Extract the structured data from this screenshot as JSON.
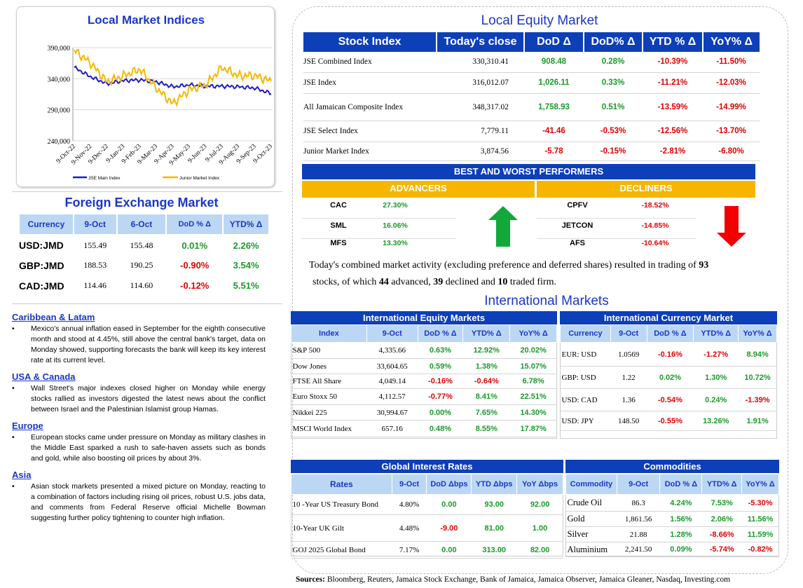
{
  "chart": {
    "title": "Local Market Indices",
    "yticks": [
      "390,000",
      "340,000",
      "290,000",
      "240,000"
    ],
    "xticks": [
      "9-Oct-22",
      "9-Nov-22",
      "9-Dec-22",
      "9-Jan-23",
      "9-Feb-23",
      "9-Mar-23",
      "9-Apr-23",
      "9-May-23",
      "9-Jun-23",
      "9-Jul-23",
      "9-Aug-23",
      "9-Sep-23",
      "9-Oct-23"
    ],
    "legend": [
      "JSE Main Index",
      "Junior Market Index"
    ],
    "colors": [
      "#1d1dc8",
      "#f5b800"
    ]
  },
  "chart_data": {
    "type": "line",
    "title": "Local Market Indices",
    "categories": [
      "9-Oct-22",
      "9-Nov-22",
      "9-Dec-22",
      "9-Jan-23",
      "9-Feb-23",
      "9-Mar-23",
      "9-Apr-23",
      "9-May-23",
      "9-Jun-23",
      "9-Jul-23",
      "9-Aug-23",
      "9-Sep-23",
      "9-Oct-23"
    ],
    "ylim": [
      240000,
      390000
    ],
    "series": [
      {
        "name": "JSE Main Index",
        "values": [
          358000,
          343000,
          332000,
          337000,
          338000,
          335000,
          327000,
          330000,
          328000,
          328000,
          327000,
          325000,
          316000
        ]
      },
      {
        "name": "Junior Market Index",
        "values": [
          386000,
          365000,
          335000,
          345000,
          355000,
          325000,
          300000,
          322000,
          330000,
          358000,
          345000,
          345000,
          336000
        ]
      }
    ]
  },
  "fx": {
    "title": "Foreign Exchange Market",
    "headers": [
      "Currency",
      "9-Oct",
      "6-Oct",
      "DoD % Δ",
      "YTD% Δ"
    ],
    "rows": [
      [
        "USD:JMD",
        "155.49",
        "155.48",
        "0.01%",
        "2.26%"
      ],
      [
        "GBP:JMD",
        "188.53",
        "190.25",
        "-0.90%",
        "3.54%"
      ],
      [
        "CAD:JMD",
        "114.46",
        "114.60",
        "-0.12%",
        "5.51%"
      ]
    ]
  },
  "news": [
    {
      "region": "Caribbean & Latam",
      "text": "Mexico's annual inflation eased in September for the eighth consecutive month and stood at 4.45%, still above the central bank's target, data on Monday showed, supporting forecasts the bank will keep its key interest rate at its current level."
    },
    {
      "region": "USA & Canada",
      "text": "Wall Street's major indexes closed higher on Monday while energy stocks rallied as investors digested the latest news about the conflict between Israel and the Palestinian Islamist group Hamas."
    },
    {
      "region": "Europe",
      "text": "European stocks came under pressure on Monday as military clashes in the Middle East sparked a rush to safe-haven assets such as bonds and gold, while also boosting oil prices by about 3%."
    },
    {
      "region": "Asia",
      "text": "Asian stock markets presented a mixed picture on Monday, reacting to a combination of factors including rising oil prices, robust U.S. jobs data, and comments from Federal Reserve official Michelle Bowman suggesting further policy tightening to counter high inflation."
    }
  ],
  "equity": {
    "title": "Local Equity Market",
    "headers": [
      "Stock Index",
      "Today's close",
      "DoD  Δ",
      "DoD% Δ",
      "YTD % Δ",
      "YoY% Δ"
    ],
    "rows": [
      [
        "JSE Combined Index",
        "330,310.41",
        "908.48",
        "0.28%",
        "-10.39%",
        "-11.50%"
      ],
      [
        "JSE Index",
        "316,012.07",
        "1,026.11",
        "0.33%",
        "-11.21%",
        "-12.03%"
      ],
      [
        "All Jamaican Composite Index",
        "348,317.02",
        "1,758.93",
        "0.51%",
        "-13.59%",
        "-14.99%"
      ],
      [
        "JSE Select Index",
        "7,779.11",
        "-41.46",
        "-0.53%",
        "-12.56%",
        "-13.70%"
      ],
      [
        "Junior Market Index",
        "3,874.56",
        "-5.78",
        "-0.15%",
        "-2.81%",
        "-6.80%"
      ]
    ]
  },
  "performers": {
    "title": "BEST AND WORST PERFORMERS",
    "adv_label": "ADVANCERS",
    "dec_label": "DECLINERS",
    "adv": [
      [
        "CAC",
        "27.30%"
      ],
      [
        "SML",
        "16.06%"
      ],
      [
        "MFS",
        "13.30%"
      ]
    ],
    "dec": [
      [
        "CPFV",
        "-18.52%"
      ],
      [
        "JETCON",
        "-14.85%"
      ],
      [
        "AFS",
        "-10.64%"
      ]
    ]
  },
  "summary": {
    "p1": "Today's combined market activity (excluding preference and deferred shares) resulted in trading of ",
    "n1": "93",
    "p2": " stocks, of which ",
    "n2": "44",
    "p3": " advanced, ",
    "n3": "39",
    "p4": " declined and ",
    "n4": "10",
    "p5": " traded firm."
  },
  "intl_title": "International Markets",
  "ieq": {
    "title": "International Equity Markets",
    "headers": [
      "Index",
      "9-Oct",
      "DoD % Δ",
      "YTD% Δ",
      "YoY% Δ"
    ],
    "rows": [
      [
        "S&P 500",
        "4,335.66",
        "0.63%",
        "12.92%",
        "20.02%"
      ],
      [
        "Dow Jones",
        "33,604.65",
        "0.59%",
        "1.38%",
        "15.07%"
      ],
      [
        "FTSE All Share",
        "4,049.14",
        "-0.16%",
        "-0.64%",
        "6.78%"
      ],
      [
        "Euro Stoxx 50",
        "4,112.57",
        "-0.77%",
        "8.41%",
        "22.51%"
      ],
      [
        "Nikkei 225",
        "30,994.67",
        "0.00%",
        "7.65%",
        "14.30%"
      ],
      [
        "MSCI World Index",
        "657.16",
        "0.48%",
        "8.55%",
        "17.87%"
      ]
    ]
  },
  "icur": {
    "title": "International Currency Market",
    "headers": [
      "Currency",
      "9-Oct",
      "DoD % Δ",
      "YTD% Δ",
      "YoY% Δ"
    ],
    "rows": [
      [
        "EUR: USD",
        "1.0569",
        "-0.16%",
        "-1.27%",
        "8.94%"
      ],
      [
        "GBP: USD",
        "1.22",
        "0.02%",
        "1.30%",
        "10.72%"
      ],
      [
        "USD: CAD",
        "1.36",
        "-0.54%",
        "0.24%",
        "-1.39%"
      ],
      [
        "USD: JPY",
        "148.50",
        "-0.55%",
        "13.26%",
        "1.91%"
      ]
    ]
  },
  "rates": {
    "title": "Global Interest Rates",
    "headers": [
      "Rates",
      "9-Oct",
      "DoD Δbps",
      "YTD Δbps",
      "YoY Δbps"
    ],
    "rows": [
      [
        "10 -Year US Treasury Bond",
        "4.80%",
        "0.00",
        "93.00",
        "92.00"
      ],
      [
        "10-Year UK Gilt",
        "4.48%",
        "-9.00",
        "81.00",
        "1.00"
      ],
      [
        "GOJ 2025 Global Bond",
        "7.17%",
        "0.00",
        "313.00",
        "82.00"
      ]
    ]
  },
  "comm": {
    "title": "Commodities",
    "headers": [
      "Commodity",
      "9-Oct",
      "DoD % Δ",
      "YTD% Δ",
      "YoY% Δ"
    ],
    "rows": [
      [
        "Crude Oil",
        "86.3",
        "4.24%",
        "7.53%",
        "-5.30%"
      ],
      [
        "Gold",
        "1,861.56",
        "1.56%",
        "2.06%",
        "11.56%"
      ],
      [
        "Silver",
        "21.88",
        "1.28%",
        "-8.66%",
        "11.59%"
      ],
      [
        "Aluminium",
        "2,241.50",
        "0.09%",
        "-5.74%",
        "-0.82%"
      ]
    ]
  },
  "sources_label": "Sources:",
  "sources_text": " Bloomberg, Reuters, Jamaica Stock Exchange, Bank of Jamaica, Jamaica Observer, Jamaica Gleaner, Nasdaq, Investing.com"
}
